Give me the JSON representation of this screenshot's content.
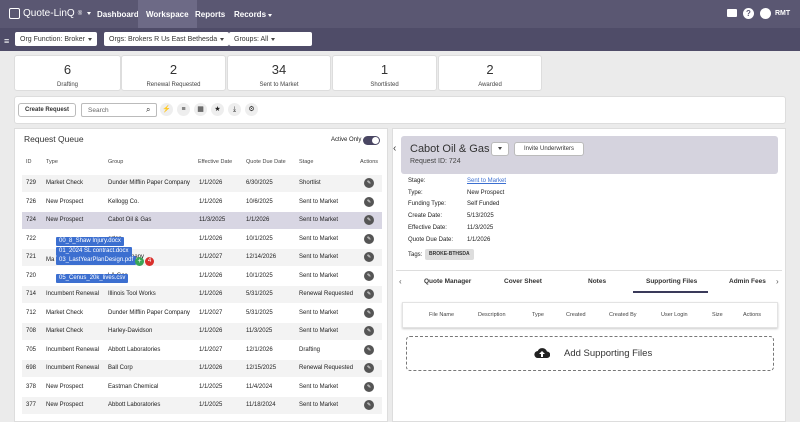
{
  "app": {
    "logo": "Quote-LinQ",
    "logo_sup": "®"
  },
  "nav": [
    {
      "label": "Dashboard"
    },
    {
      "label": "Workspace"
    },
    {
      "label": "Reports"
    },
    {
      "label": "Records"
    }
  ],
  "user": {
    "initials": "RMT"
  },
  "filters": {
    "org_function": "Org Function: Broker",
    "orgs": "Orgs: Brokers R Us East Bethesda",
    "groups": "Groups: All"
  },
  "stats": [
    {
      "count": "6",
      "label": "Drafting"
    },
    {
      "count": "2",
      "label": "Renewal Requested"
    },
    {
      "count": "34",
      "label": "Sent to Market"
    },
    {
      "count": "1",
      "label": "Shortlisted"
    },
    {
      "count": "2",
      "label": "Awarded"
    }
  ],
  "toolbar": {
    "create_label": "Create Request",
    "search_placeholder": "Search"
  },
  "queue": {
    "title": "Request Queue",
    "active_only": "Active Only",
    "columns": [
      "ID",
      "Type",
      "Group",
      "Effective Date",
      "Quote Due Date",
      "Stage",
      "Actions"
    ],
    "rows": [
      {
        "id": "729",
        "type": "Market Check",
        "group": "Dunder Mifflin Paper Company",
        "eff": "1/1/2026",
        "due": "6/30/2025",
        "stage": "Shortlist"
      },
      {
        "id": "726",
        "type": "New Prospect",
        "group": "Kellogg Co.",
        "eff": "1/1/2026",
        "due": "10/6/2025",
        "stage": "Sent to Market"
      },
      {
        "id": "724",
        "type": "New Prospect",
        "group": "Cabot Oil & Gas",
        "eff": "11/3/2025",
        "due": "1/1/2026",
        "stage": "Sent to Market"
      },
      {
        "id": "722",
        "type": "",
        "group": "orton",
        "eff": "1/1/2026",
        "due": "10/1/2025",
        "stage": "Sent to Market"
      },
      {
        "id": "721",
        "type": "",
        "group": "GE Company",
        "eff": "1/1/2027",
        "due": "12/14/2026",
        "stage": "Sent to Market"
      },
      {
        "id": "720",
        "type": "",
        "group": "l & Gas",
        "eff": "1/1/2026",
        "due": "10/1/2025",
        "stage": "Sent to Market"
      },
      {
        "id": "714",
        "type": "Incumbent Renewal",
        "group": "Illinois Tool Works",
        "eff": "1/1/2026",
        "due": "5/31/2025",
        "stage": "Renewal Requested"
      },
      {
        "id": "712",
        "type": "Market Check",
        "group": "Dunder Mifflin Paper Company",
        "eff": "1/1/2027",
        "due": "5/31/2025",
        "stage": "Sent to Market"
      },
      {
        "id": "708",
        "type": "Market Check",
        "group": "Harley-Davidson",
        "eff": "1/1/2026",
        "due": "11/3/2025",
        "stage": "Sent to Market"
      },
      {
        "id": "705",
        "type": "Incumbent Renewal",
        "group": "Abbott Laboratories",
        "eff": "1/1/2027",
        "due": "12/1/2026",
        "stage": "Drafting"
      },
      {
        "id": "698",
        "type": "Incumbent Renewal",
        "group": "Ball Corp",
        "eff": "1/1/2026",
        "due": "12/15/2025",
        "stage": "Renewal Requested"
      },
      {
        "id": "378",
        "type": "New Prospect",
        "group": "Eastman Chemical",
        "eff": "1/1/2025",
        "due": "11/4/2024",
        "stage": "Sent to Market"
      },
      {
        "id": "377",
        "type": "New Prospect",
        "group": "Abbott Laboratories",
        "eff": "1/1/2025",
        "due": "11/18/2024",
        "stage": "Sent to Market"
      }
    ]
  },
  "drag": {
    "files": [
      "00_8_Shaw Injury.docx",
      "01_2024 SL contract.docx",
      "03_LastYearPlanDesign.pdf",
      "05_Cenus_20k_lives.csv"
    ],
    "badge": "4",
    "partial_label": "Ma"
  },
  "detail": {
    "title": "Cabot Oil & Gas",
    "request_id": "Request ID: 724",
    "invite": "Invite Underwriters",
    "fields": [
      {
        "k": "Stage:",
        "v": "Sent to Market"
      },
      {
        "k": "Type:",
        "v": "New Prospect"
      },
      {
        "k": "Funding Type:",
        "v": "Self Funded"
      },
      {
        "k": "Create Date:",
        "v": "5/13/2025"
      },
      {
        "k": "Effective Date:",
        "v": "11/3/2025"
      },
      {
        "k": "Quote Due Date:",
        "v": "1/1/2026"
      }
    ],
    "tags_label": "Tags:",
    "tag": "BROKE-BTHSDA",
    "tabs": [
      "Quote Manager",
      "Cover Sheet",
      "Notes",
      "Supporting Files",
      "Admin Fees"
    ],
    "file_columns": [
      "File Name",
      "Description",
      "Type",
      "Created",
      "Created By",
      "User Login",
      "Size",
      "Actions"
    ],
    "add_files": "Add Supporting Files"
  },
  "colors": {
    "nav": "#5a5772",
    "filterbar": "#4f4c68",
    "link": "#3c6fd0",
    "selected_row": "#d8d6e3",
    "detail_header": "#d5d3de"
  }
}
